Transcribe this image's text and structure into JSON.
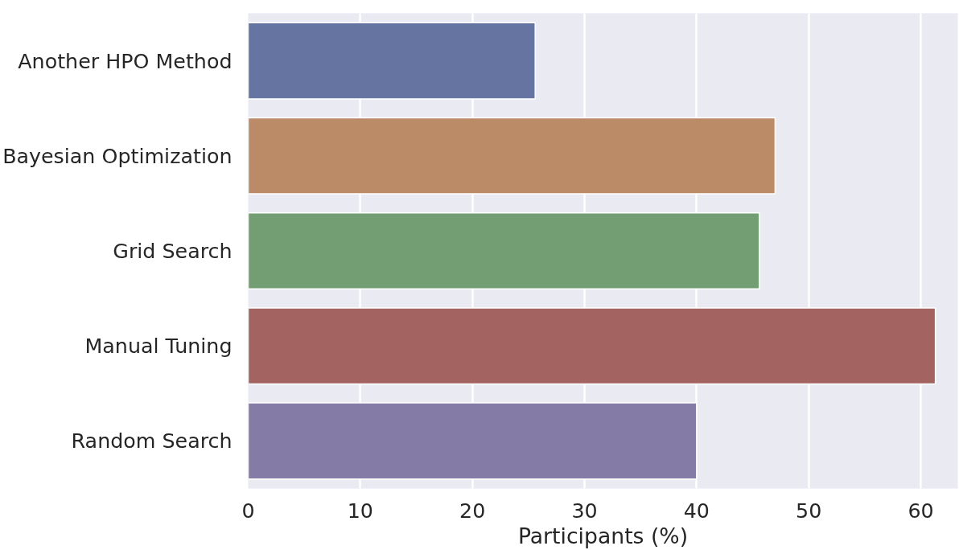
{
  "chart_data": {
    "type": "bar",
    "orientation": "horizontal",
    "xlabel": "Participants (%)",
    "categories": [
      "Another HPO Method",
      "Bayesian Optimization",
      "Grid Search",
      "Manual Tuning",
      "Random Search"
    ],
    "values": [
      25.6,
      47.0,
      45.6,
      61.3,
      40.0
    ],
    "colors": [
      "#6574a0",
      "#bb8a67",
      "#739d73",
      "#a26361",
      "#847ba6"
    ],
    "xlim": [
      0,
      63.3
    ],
    "xticks": [
      0,
      10,
      20,
      30,
      40,
      50,
      60
    ],
    "grid": "x"
  }
}
